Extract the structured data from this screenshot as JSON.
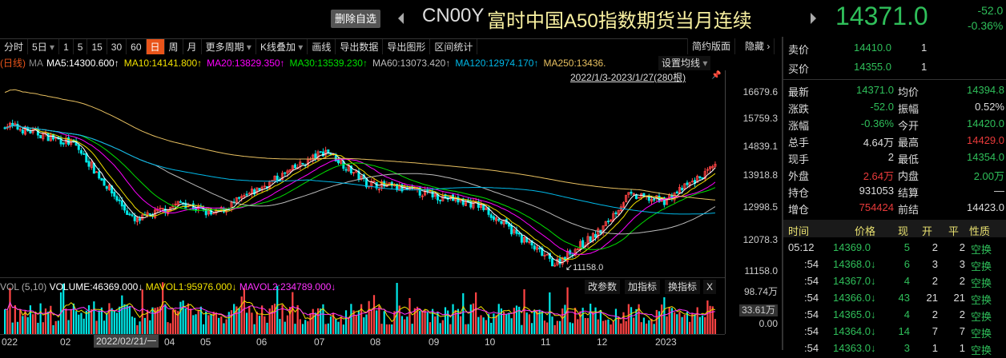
{
  "header": {
    "delete_watch": "删除自选",
    "code": "CN00Y",
    "name": "富时中国A50指数期货当月连续",
    "price": "14371.0",
    "change": "-52.0",
    "change_pct": "-0.36%"
  },
  "toolbar": {
    "items": [
      {
        "label": "分时"
      },
      {
        "label": "5日",
        "dropdown": true
      },
      {
        "label": "1"
      },
      {
        "label": "5"
      },
      {
        "label": "15"
      },
      {
        "label": "30"
      },
      {
        "label": "60"
      },
      {
        "label": "日",
        "active": true
      },
      {
        "label": "周"
      },
      {
        "label": "月"
      },
      {
        "label": "更多周期",
        "dropdown": true
      },
      {
        "label": "K线叠加",
        "dropdown": true
      },
      {
        "label": "画线"
      },
      {
        "label": "导出数据"
      },
      {
        "label": "导出图形"
      },
      {
        "label": "区间统计"
      }
    ],
    "simple": "简约版面",
    "hide": "隐藏"
  },
  "ma": {
    "period": "(日线)",
    "label": "MA",
    "items": [
      {
        "text": "MA5:14300.600↑",
        "color": "#ffffff"
      },
      {
        "text": "MA10:14141.800↑",
        "color": "#f0e000"
      },
      {
        "text": "MA20:13829.350↑",
        "color": "#ff00ff"
      },
      {
        "text": "MA30:13539.230↑",
        "color": "#00e000"
      },
      {
        "text": "MA60:13073.420↑",
        "color": "#bbbbbb"
      },
      {
        "text": "MA120:12974.170↑",
        "color": "#00b8e8"
      },
      {
        "text": "MA250:13436.",
        "color": "#e8c060"
      }
    ],
    "set": "设置均线",
    "range": "2022/1/3-2023/1/27(280根)"
  },
  "chart_data": {
    "type": "candlestick",
    "x_range": [
      "2022/1/3",
      "2023/1/27"
    ],
    "bars": 280,
    "y_ticks": [
      "16679.6",
      "15759.3",
      "14839.1",
      "13918.8",
      "12998.5",
      "12078.3",
      "11158.0"
    ],
    "low_label": "11158.0",
    "close_anchors": [
      {
        "date": "2022-01-03",
        "close": 15700
      },
      {
        "date": "2022-02-10",
        "close": 15100
      },
      {
        "date": "2022-03-15",
        "close": 12700
      },
      {
        "date": "2022-04-10",
        "close": 13300
      },
      {
        "date": "2022-04-27",
        "close": 12900
      },
      {
        "date": "2022-06-28",
        "close": 14900
      },
      {
        "date": "2022-07-20",
        "close": 13900
      },
      {
        "date": "2022-08-20",
        "close": 13600
      },
      {
        "date": "2022-09-20",
        "close": 13200
      },
      {
        "date": "2022-10-31",
        "close": 11400
      },
      {
        "date": "2022-11-25",
        "close": 12400
      },
      {
        "date": "2022-12-10",
        "close": 13500
      },
      {
        "date": "2022-12-30",
        "close": 13350
      },
      {
        "date": "2023-01-27",
        "close": 14371
      }
    ],
    "up_color": "#ff4444",
    "down_color": "#00e8e8"
  },
  "volume": {
    "header": "VOL (5,10)",
    "volume": "VOLUME:46369.000↓",
    "mavol1": "MAVOL1:95976.000↓",
    "mavol2": "MAVOL2:234789.000↓",
    "buttons": [
      "改参数",
      "加指标",
      "换指标",
      "X"
    ],
    "axis": [
      "98.74万",
      "33.61万",
      "0.00"
    ]
  },
  "xaxis": {
    "labels": [
      "022",
      "02",
      "04",
      "05",
      "06",
      "07",
      "08",
      "09",
      "10",
      "11",
      "12",
      "2023"
    ],
    "cursor": "2022/02/21/一"
  },
  "quote": {
    "sell": [
      "卖价",
      "14410.0",
      "1"
    ],
    "buy": [
      "买价",
      "14355.0",
      "1"
    ],
    "rows": [
      [
        "最新",
        "14371.0",
        "g",
        "均价",
        "14394.8",
        "g"
      ],
      [
        "涨跌",
        "-52.0",
        "g",
        "振幅",
        "0.52%",
        "w"
      ],
      [
        "涨幅",
        "-0.36%",
        "g",
        "今开",
        "14420.0",
        "g"
      ],
      [
        "总手",
        "4.64万",
        "w",
        "最高",
        "14429.0",
        "r"
      ],
      [
        "现手",
        "2",
        "w",
        "最低",
        "14354.0",
        "g"
      ],
      [
        "外盘",
        "2.64万",
        "r",
        "内盘",
        "2.00万",
        "g"
      ],
      [
        "持仓",
        "931053",
        "w",
        "结算",
        "—",
        "w"
      ],
      [
        "增仓",
        "754424",
        "r",
        "前结",
        "14423.0",
        "w"
      ]
    ]
  },
  "trades": {
    "headers": [
      "时间",
      "价格",
      "现",
      "开",
      "平",
      "性质"
    ],
    "rows": [
      [
        "05:12",
        "14369.0",
        "5",
        "2",
        "2",
        "空换"
      ],
      [
        ":54",
        "14368.0↓",
        "6",
        "3",
        "3",
        "空换"
      ],
      [
        ":54",
        "14367.0↓",
        "4",
        "2",
        "2",
        "空换"
      ],
      [
        ":54",
        "14366.0↓",
        "43",
        "21",
        "21",
        "空换"
      ],
      [
        ":54",
        "14365.0↓",
        "4",
        "2",
        "2",
        "空换"
      ],
      [
        ":54",
        "14364.0↓",
        "14",
        "7",
        "7",
        "空换"
      ],
      [
        ":54",
        "14363.0↓",
        "3",
        "1",
        "1",
        "空换"
      ]
    ]
  }
}
